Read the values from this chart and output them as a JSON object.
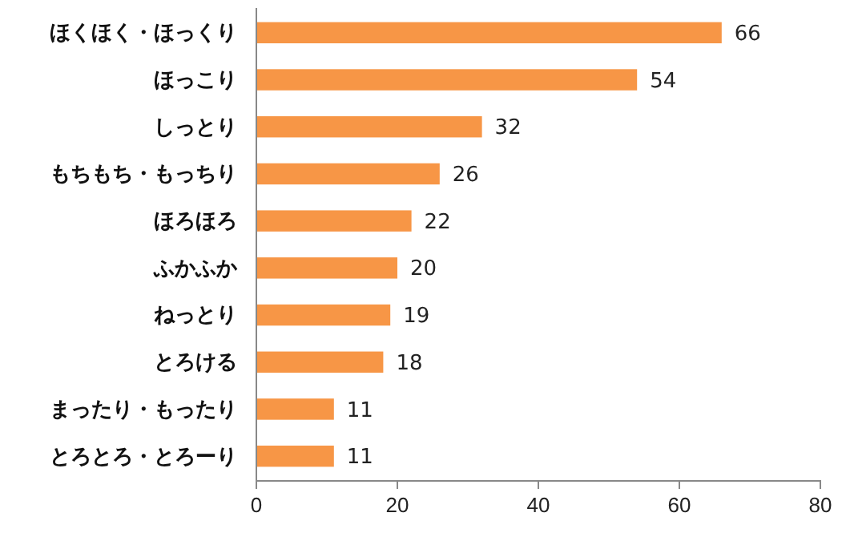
{
  "chart_data": {
    "type": "bar",
    "orientation": "horizontal",
    "categories": [
      "ほくほく・ほっくり",
      "ほっこり",
      "しっとり",
      "もちもち・もっちり",
      "ほろほろ",
      "ふかふか",
      "ねっとり",
      "とろける",
      "まったり・もったり",
      "とろとろ・とろーり"
    ],
    "values": [
      66,
      54,
      32,
      26,
      22,
      20,
      19,
      18,
      11,
      11
    ],
    "color": "#f79646",
    "data_labels": true,
    "xlim": [
      0,
      80
    ],
    "xticks": [
      0,
      20,
      40,
      60,
      80
    ]
  }
}
